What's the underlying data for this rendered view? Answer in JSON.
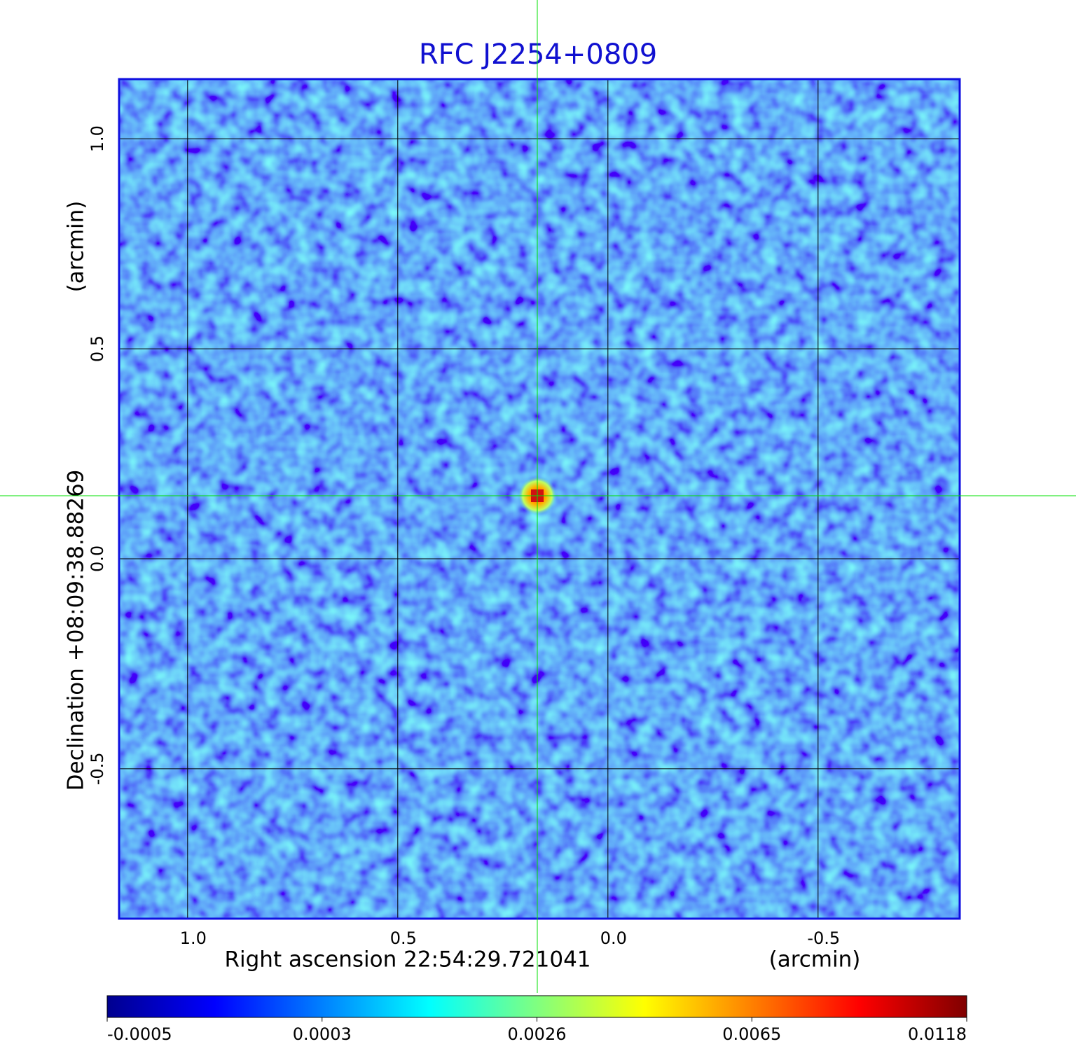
{
  "chart_data": {
    "type": "image",
    "title": "RFC J2254+0809",
    "xlabel": "Right ascension  22:54:29.721041",
    "xunit": "(arcmin)",
    "ylabel": "Declination  +08:09:38.88269",
    "yunit": "(arcmin)",
    "xlim": [
      1.163,
      -0.837
    ],
    "ylim": [
      -0.857,
      1.142
    ],
    "xticks": [
      {
        "value": 1,
        "label": "1.0"
      },
      0.5,
      {
        "value": 0,
        "label": "0.0"
      },
      -0.5
    ],
    "yticks": [
      -0.5,
      {
        "value": 0,
        "label": "0.0"
      },
      0.5,
      {
        "value": 1,
        "label": "1.0"
      }
    ],
    "grid": true,
    "source": {
      "x": 0.168,
      "y": 0.15
    },
    "colorbar": {
      "ticks": [
        -0.0005,
        0.0003,
        0.0026,
        0.0065,
        0.0118
      ],
      "colors": [
        "#00008f",
        "#0000ff",
        "#0080ff",
        "#00ffff",
        "#80ff80",
        "#ffff00",
        "#ff8000",
        "#ff0000",
        "#800000"
      ]
    }
  }
}
